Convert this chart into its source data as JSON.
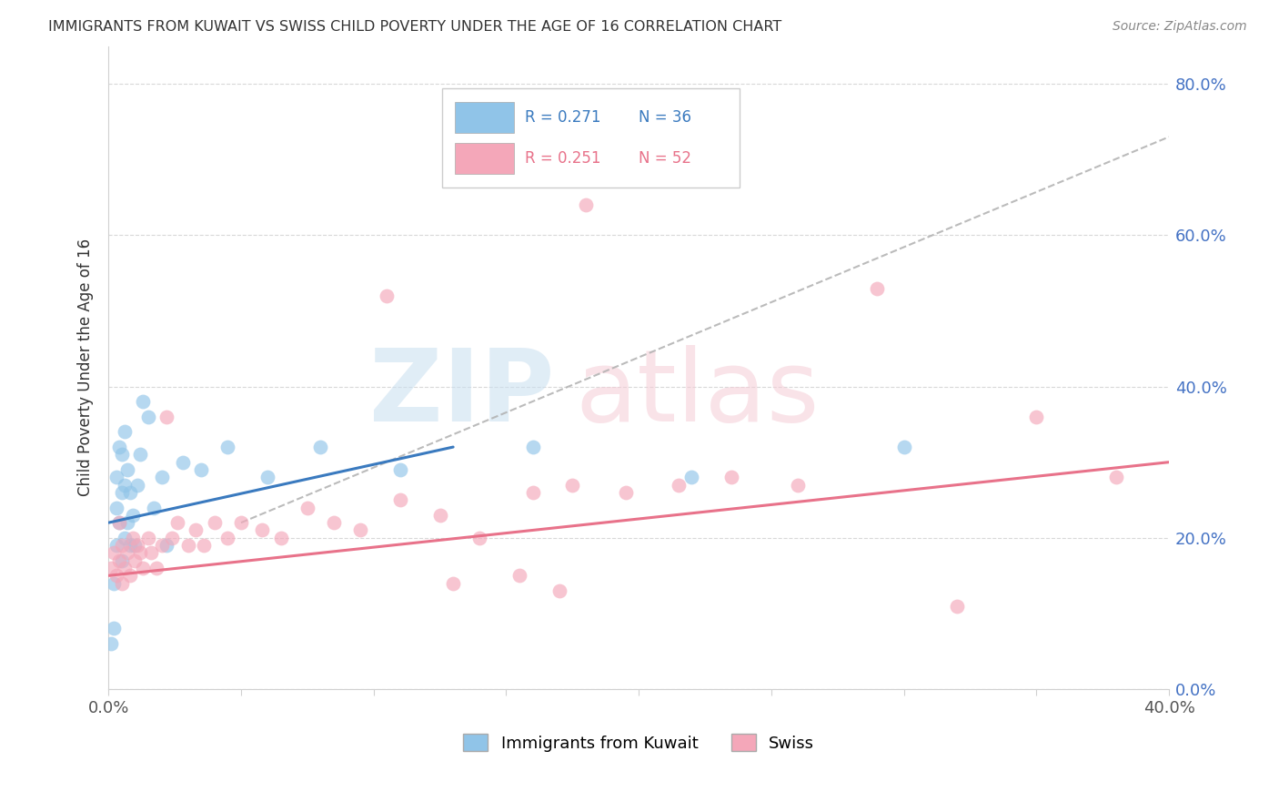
{
  "title": "IMMIGRANTS FROM KUWAIT VS SWISS CHILD POVERTY UNDER THE AGE OF 16 CORRELATION CHART",
  "source": "Source: ZipAtlas.com",
  "ylabel": "Child Poverty Under the Age of 16",
  "xlim": [
    0.0,
    0.4
  ],
  "ylim": [
    0.0,
    0.85
  ],
  "y_tick_positions": [
    0.0,
    0.2,
    0.4,
    0.6,
    0.8
  ],
  "y_tick_labels_right": [
    "0.0%",
    "20.0%",
    "40.0%",
    "60.0%",
    "80.0%"
  ],
  "x_tick_positions": [
    0.0,
    0.05,
    0.1,
    0.15,
    0.2,
    0.25,
    0.3,
    0.35,
    0.4
  ],
  "x_tick_labels": [
    "0.0%",
    "",
    "",
    "",
    "",
    "",
    "",
    "",
    "40.0%"
  ],
  "legend_blue_R": "R = 0.271",
  "legend_blue_N": "N = 36",
  "legend_pink_R": "R = 0.251",
  "legend_pink_N": "N = 52",
  "blue_scatter_color": "#90c4e8",
  "pink_scatter_color": "#f4a7b9",
  "blue_line_color": "#3a7abf",
  "pink_line_color": "#e8728a",
  "gray_dash_color": "#b0b0b0",
  "blue_legend_text_color": "#3a7abf",
  "pink_legend_text_color": "#e8728a",
  "watermark_blue": "#c8dff0",
  "watermark_pink": "#f5ccd6",
  "blue_points_x": [
    0.001,
    0.002,
    0.002,
    0.003,
    0.003,
    0.003,
    0.004,
    0.004,
    0.005,
    0.005,
    0.005,
    0.006,
    0.006,
    0.006,
    0.007,
    0.007,
    0.008,
    0.008,
    0.009,
    0.01,
    0.011,
    0.012,
    0.013,
    0.015,
    0.017,
    0.02,
    0.022,
    0.028,
    0.035,
    0.045,
    0.06,
    0.08,
    0.11,
    0.16,
    0.22,
    0.3
  ],
  "blue_points_y": [
    0.06,
    0.14,
    0.08,
    0.19,
    0.24,
    0.28,
    0.22,
    0.32,
    0.17,
    0.26,
    0.31,
    0.2,
    0.27,
    0.34,
    0.22,
    0.29,
    0.19,
    0.26,
    0.23,
    0.19,
    0.27,
    0.31,
    0.38,
    0.36,
    0.24,
    0.28,
    0.19,
    0.3,
    0.29,
    0.32,
    0.28,
    0.32,
    0.29,
    0.32,
    0.28,
    0.32
  ],
  "pink_points_x": [
    0.001,
    0.002,
    0.003,
    0.004,
    0.004,
    0.005,
    0.005,
    0.006,
    0.007,
    0.008,
    0.009,
    0.01,
    0.011,
    0.012,
    0.013,
    0.015,
    0.016,
    0.018,
    0.02,
    0.022,
    0.024,
    0.026,
    0.03,
    0.033,
    0.036,
    0.04,
    0.045,
    0.05,
    0.058,
    0.065,
    0.075,
    0.085,
    0.095,
    0.11,
    0.125,
    0.14,
    0.16,
    0.175,
    0.195,
    0.215,
    0.235,
    0.26,
    0.29,
    0.32,
    0.35,
    0.38,
    0.18,
    0.2,
    0.105,
    0.13,
    0.155,
    0.17
  ],
  "pink_points_y": [
    0.16,
    0.18,
    0.15,
    0.17,
    0.22,
    0.14,
    0.19,
    0.16,
    0.18,
    0.15,
    0.2,
    0.17,
    0.19,
    0.18,
    0.16,
    0.2,
    0.18,
    0.16,
    0.19,
    0.36,
    0.2,
    0.22,
    0.19,
    0.21,
    0.19,
    0.22,
    0.2,
    0.22,
    0.21,
    0.2,
    0.24,
    0.22,
    0.21,
    0.25,
    0.23,
    0.2,
    0.26,
    0.27,
    0.26,
    0.27,
    0.28,
    0.27,
    0.53,
    0.11,
    0.36,
    0.28,
    0.64,
    0.68,
    0.52,
    0.14,
    0.15,
    0.13
  ],
  "blue_line_x": [
    0.0,
    0.13
  ],
  "blue_line_y": [
    0.22,
    0.32
  ],
  "pink_line_x": [
    0.0,
    0.4
  ],
  "pink_line_y": [
    0.15,
    0.3
  ],
  "gray_dash_line_x": [
    0.05,
    0.4
  ],
  "gray_dash_line_y": [
    0.22,
    0.73
  ]
}
